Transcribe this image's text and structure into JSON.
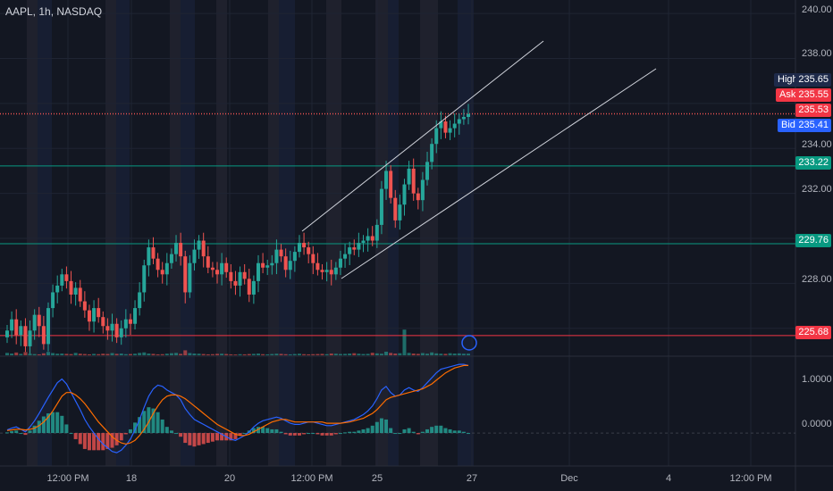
{
  "header": {
    "symbol": "AAPL, 1h, NASDAQ"
  },
  "colors": {
    "background": "#131722",
    "up": "#26a69a",
    "down": "#ef5350",
    "macd": "#2962ff",
    "signal": "#ff6d00",
    "level_green": "#089981",
    "level_red": "#f23645",
    "session_pre": "#2a2a36",
    "session_blue": "#1c2440",
    "channel": "#d1d4dc"
  },
  "price_scale": [
    "240.00",
    "238.00",
    "234.00",
    "232.00",
    "228.00",
    "0.0000",
    "1.0000"
  ],
  "time_scale": [
    "12:00 PM",
    "18",
    "20",
    "12:00 PM",
    "25",
    "27",
    "Dec",
    "4",
    "12:00 PM"
  ],
  "quote": {
    "high_label": "High",
    "high": "235.65",
    "ask_label": "Ask",
    "ask": "235.55",
    "last": "235.53",
    "bid_label": "Bid",
    "bid": "235.41"
  },
  "levels": [
    {
      "value": "233.22",
      "color": "#089981"
    },
    {
      "value": "229.76",
      "color": "#089981"
    },
    {
      "value": "225.68",
      "color": "#f23645"
    }
  ],
  "chart_data": {
    "type": "candlestick",
    "title": "AAPL, 1h, NASDAQ",
    "price_range": [
      224.8,
      240.6
    ],
    "x_ticks": [
      "12:00 PM",
      "18",
      "20",
      "12:00 PM",
      "25",
      "27",
      "Dec",
      "4",
      "12:00 PM"
    ],
    "closes": [
      225.9,
      226.4,
      225.7,
      226.1,
      225.2,
      225.9,
      226.6,
      226.1,
      225.3,
      226.9,
      227.6,
      227.9,
      228.4,
      228.1,
      227.5,
      227.8,
      227.2,
      226.8,
      226.3,
      226.9,
      226.5,
      226.1,
      225.9,
      226.2,
      225.6,
      226.0,
      226.4,
      226.2,
      226.9,
      227.6,
      228.8,
      229.6,
      229.1,
      228.6,
      228.4,
      228.9,
      229.3,
      229.8,
      229.2,
      227.6,
      228.9,
      229.5,
      229.9,
      229.2,
      228.7,
      228.6,
      228.4,
      228.9,
      228.5,
      228.1,
      227.9,
      228.5,
      228.2,
      227.5,
      228.1,
      228.9,
      228.7,
      228.8,
      228.9,
      229.5,
      229.2,
      228.6,
      229.0,
      229.4,
      229.8,
      229.6,
      229.3,
      228.9,
      228.6,
      228.5,
      228.6,
      228.4,
      228.7,
      229.1,
      229.3,
      229.6,
      229.5,
      229.8,
      229.9,
      230.1,
      229.9,
      230.6,
      232.2,
      233.0,
      231.8,
      230.8,
      231.5,
      232.4,
      233.1,
      232.0,
      231.7,
      232.6,
      233.4,
      234.2,
      234.9,
      235.2,
      234.7,
      234.9,
      235.1,
      235.3,
      235.4,
      235.53
    ],
    "volume": [
      0.3,
      0.22,
      0.35,
      0.18,
      0.4,
      0.2,
      0.15,
      0.12,
      0.25,
      0.42,
      0.28,
      0.2,
      0.22,
      0.18,
      0.15,
      0.3,
      0.2,
      0.16,
      0.12,
      0.18,
      0.14,
      0.2,
      0.16,
      0.28,
      0.18,
      0.22,
      0.14,
      0.16,
      0.2,
      0.3,
      0.36,
      0.22,
      0.18,
      0.12,
      0.14,
      0.2,
      0.26,
      0.3,
      0.18,
      0.62,
      0.28,
      0.22,
      0.2,
      0.16,
      0.12,
      0.14,
      0.18,
      0.2,
      0.16,
      0.12,
      0.1,
      0.14,
      0.12,
      0.16,
      0.18,
      0.22,
      0.14,
      0.12,
      0.16,
      0.2,
      0.18,
      0.14,
      0.12,
      0.16,
      0.2,
      0.14,
      0.12,
      0.14,
      0.16,
      0.18,
      0.14,
      0.22,
      0.2,
      0.16,
      0.18,
      0.22,
      0.26,
      0.2,
      0.16,
      0.18,
      0.32,
      0.24,
      0.2,
      0.45,
      0.3,
      0.22,
      0.26,
      3.2,
      0.3,
      0.22,
      0.18,
      0.28,
      0.2,
      0.36,
      0.24,
      0.2,
      0.18,
      0.26,
      0.22,
      0.24,
      0.2,
      0.2
    ],
    "macd": {
      "range": [
        -0.45,
        1.15
      ],
      "series": [
        {
          "name": "MACD",
          "values": [
            0.05,
            0.08,
            0.1,
            0.06,
            0.02,
            0.1,
            0.2,
            0.32,
            0.45,
            0.58,
            0.7,
            0.82,
            0.88,
            0.8,
            0.66,
            0.52,
            0.38,
            0.22,
            0.1,
            0.0,
            -0.1,
            -0.18,
            -0.24,
            -0.3,
            -0.32,
            -0.28,
            -0.2,
            -0.1,
            0.05,
            0.22,
            0.42,
            0.6,
            0.72,
            0.78,
            0.76,
            0.7,
            0.66,
            0.62,
            0.54,
            0.4,
            0.3,
            0.22,
            0.18,
            0.14,
            0.1,
            0.06,
            0.02,
            -0.02,
            -0.06,
            -0.1,
            -0.12,
            -0.08,
            -0.04,
            0.02,
            0.1,
            0.16,
            0.2,
            0.22,
            0.24,
            0.26,
            0.24,
            0.2,
            0.16,
            0.14,
            0.14,
            0.16,
            0.18,
            0.18,
            0.16,
            0.14,
            0.12,
            0.12,
            0.14,
            0.16,
            0.18,
            0.2,
            0.22,
            0.26,
            0.3,
            0.36,
            0.44,
            0.56,
            0.7,
            0.76,
            0.66,
            0.6,
            0.62,
            0.7,
            0.74,
            0.7,
            0.68,
            0.74,
            0.82,
            0.9,
            0.98,
            1.04,
            1.06,
            1.08,
            1.1,
            1.12,
            1.12,
            1.1
          ]
        },
        {
          "name": "Signal",
          "values": [
            0.04,
            0.05,
            0.06,
            0.06,
            0.05,
            0.06,
            0.08,
            0.12,
            0.18,
            0.26,
            0.36,
            0.48,
            0.6,
            0.66,
            0.66,
            0.62,
            0.56,
            0.48,
            0.38,
            0.28,
            0.18,
            0.1,
            0.02,
            -0.06,
            -0.12,
            -0.16,
            -0.18,
            -0.16,
            -0.12,
            -0.04,
            0.06,
            0.18,
            0.32,
            0.44,
            0.54,
            0.6,
            0.62,
            0.62,
            0.6,
            0.56,
            0.5,
            0.44,
            0.38,
            0.32,
            0.26,
            0.2,
            0.14,
            0.1,
            0.06,
            0.02,
            -0.02,
            -0.04,
            -0.04,
            -0.02,
            0.02,
            0.06,
            0.1,
            0.14,
            0.18,
            0.2,
            0.22,
            0.22,
            0.2,
            0.18,
            0.18,
            0.18,
            0.18,
            0.18,
            0.18,
            0.18,
            0.16,
            0.16,
            0.16,
            0.16,
            0.17,
            0.18,
            0.2,
            0.22,
            0.24,
            0.28,
            0.32,
            0.38,
            0.46,
            0.54,
            0.58,
            0.6,
            0.62,
            0.64,
            0.66,
            0.68,
            0.7,
            0.72,
            0.76,
            0.8,
            0.86,
            0.92,
            0.98,
            1.02,
            1.06,
            1.08,
            1.1,
            1.1
          ]
        }
      ]
    },
    "annotations": [
      "Parallel channel"
    ]
  }
}
